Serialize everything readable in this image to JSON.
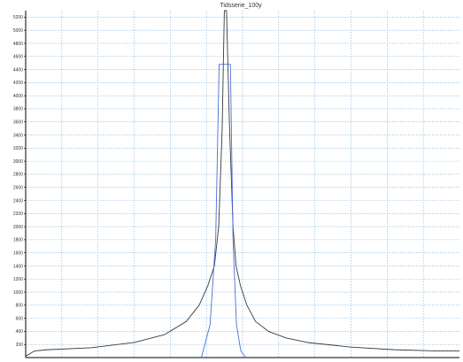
{
  "chart_data": {
    "type": "line",
    "title": "Tidsserie_100y",
    "xlabel": "",
    "ylabel": "",
    "ylim": [
      0,
      5300
    ],
    "yticks": [
      200,
      400,
      600,
      800,
      1000,
      1200,
      1400,
      1600,
      1800,
      2000,
      2200,
      2400,
      2600,
      2800,
      3000,
      3200,
      3400,
      3600,
      3800,
      4000,
      4200,
      4400,
      4600,
      4800,
      5000,
      5200
    ],
    "xlim": [
      0,
      100
    ],
    "grid": true,
    "series": [
      {
        "color": "#3a3a3a",
        "x": [
          0,
          2,
          5,
          15,
          25,
          32,
          37,
          40,
          42,
          43.5,
          44.5,
          45.3,
          45.8,
          46.3,
          47,
          47.8,
          48.5,
          49.5,
          51,
          53,
          56,
          60,
          65,
          75,
          85,
          95,
          100
        ],
        "y": [
          20,
          100,
          120,
          150,
          230,
          350,
          550,
          800,
          1100,
          1400,
          2000,
          3500,
          5300,
          5300,
          3500,
          2000,
          1400,
          1100,
          800,
          550,
          400,
          300,
          230,
          160,
          120,
          100,
          100
        ]
      },
      {
        "color": "#4a70d8",
        "x": [
          40.5,
          42.5,
          43.8,
          44.6,
          45.2,
          47.2,
          47.8,
          48.6,
          49.6,
          50.8
        ],
        "y": [
          0,
          500,
          1800,
          4480,
          4480,
          4480,
          1800,
          500,
          100,
          0
        ]
      }
    ]
  }
}
